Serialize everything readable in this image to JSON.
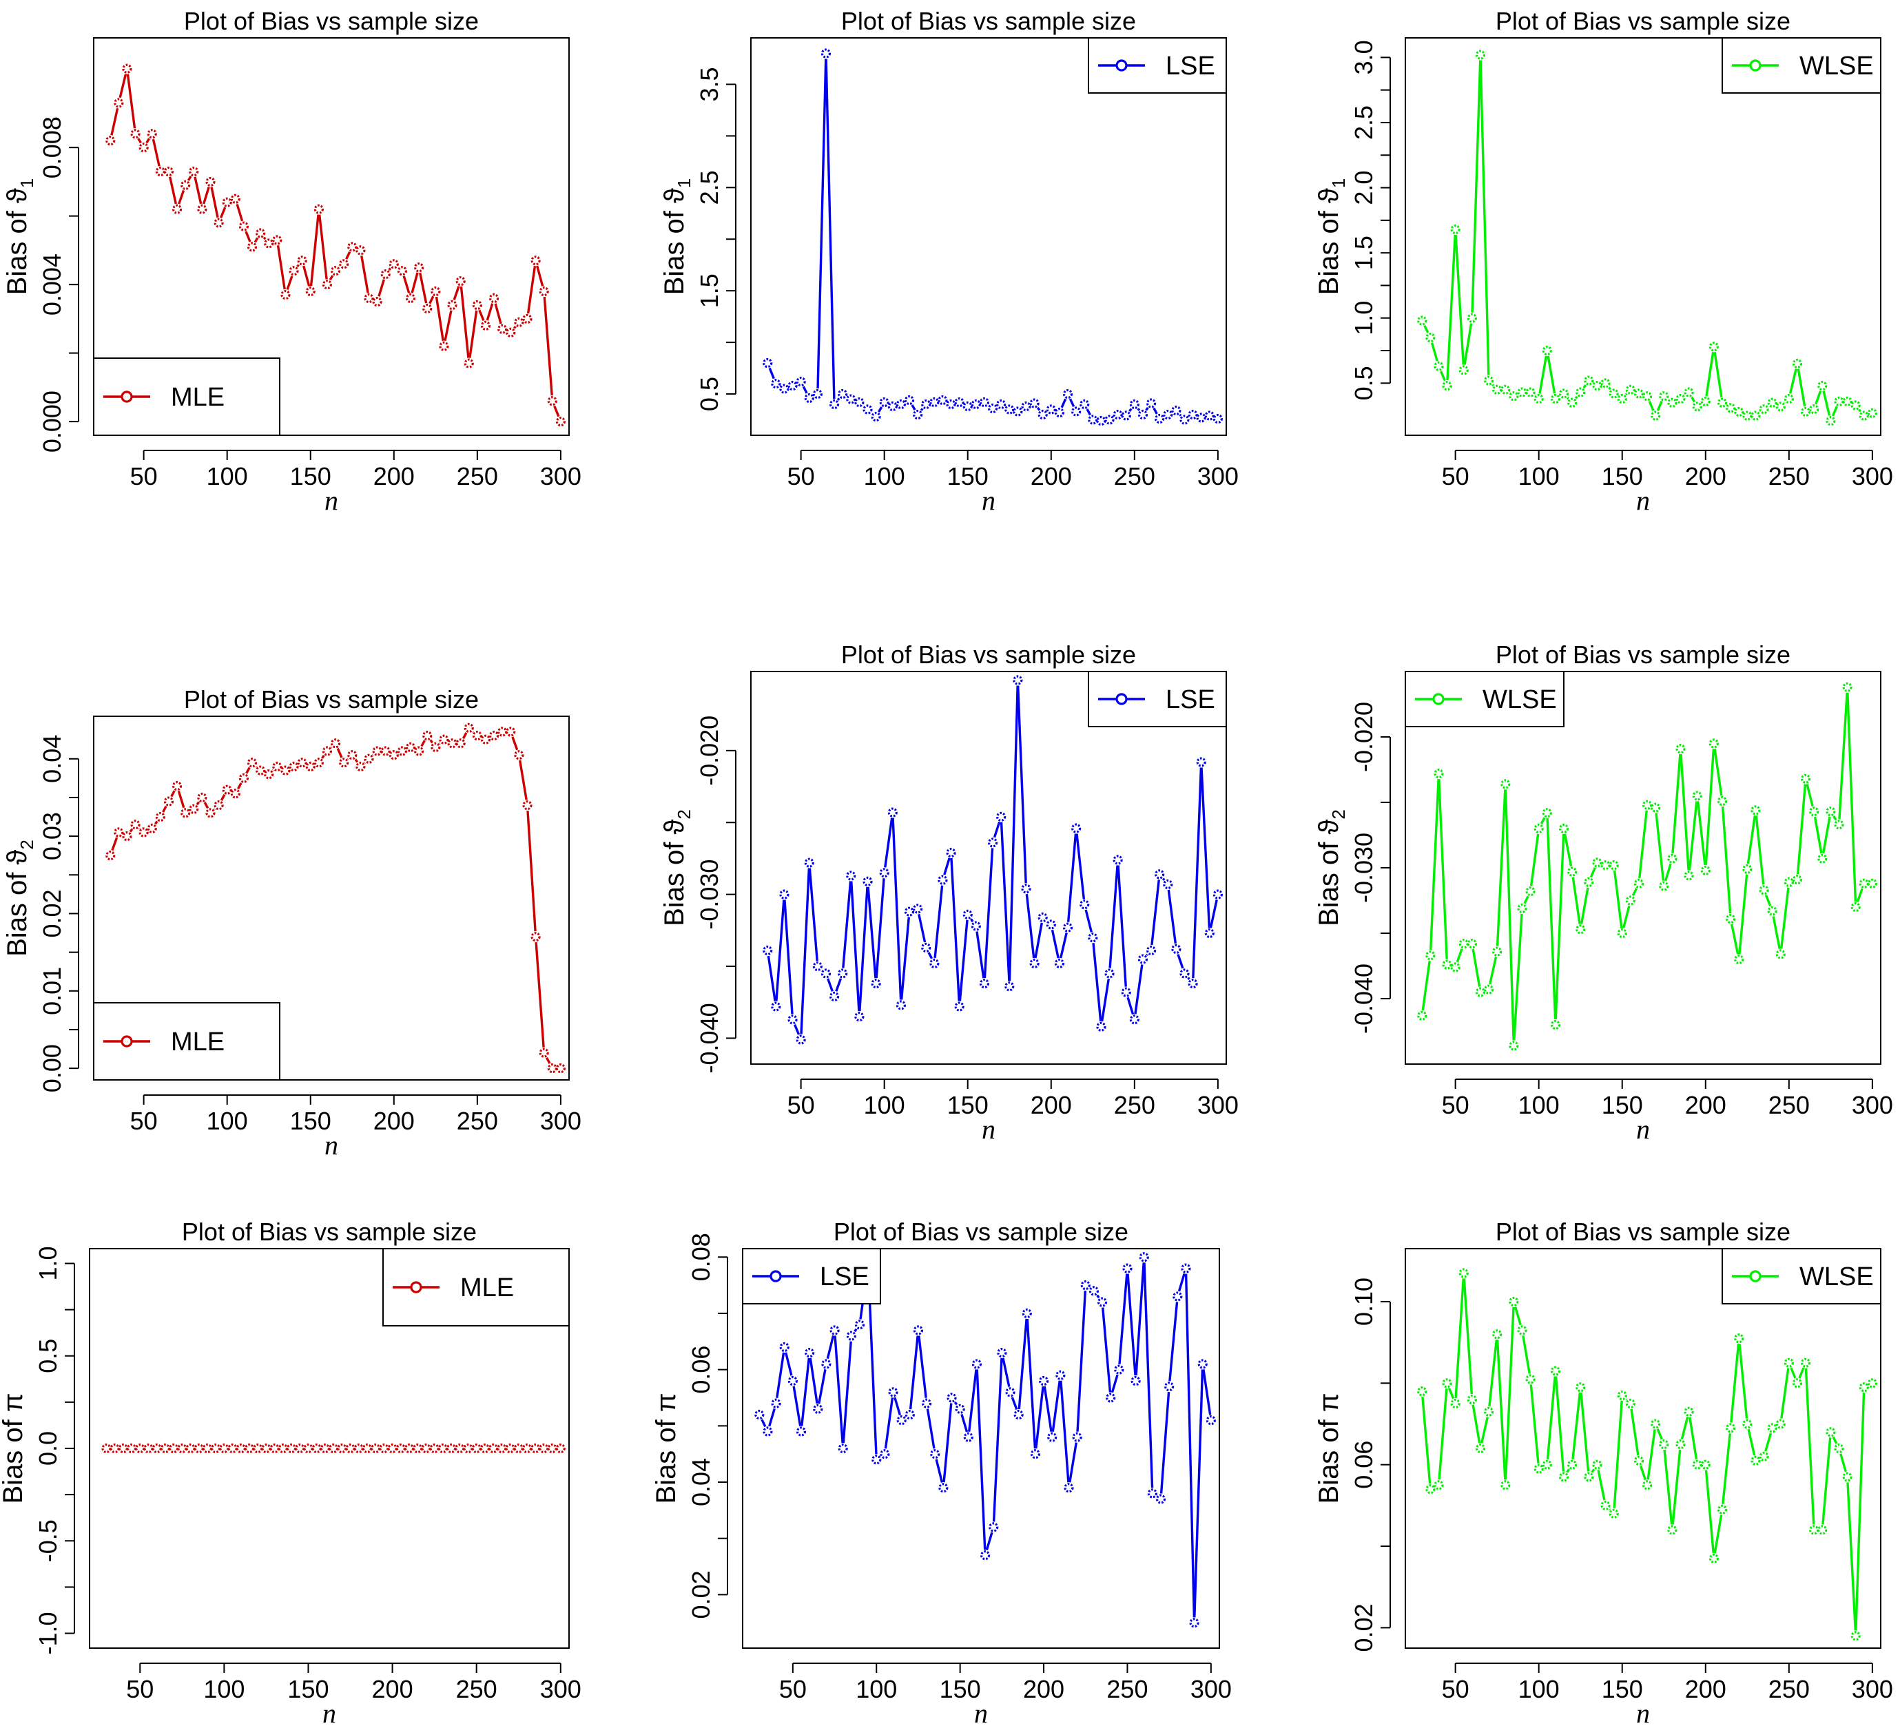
{
  "chart_data": [
    {
      "id": "p11",
      "type": "line",
      "title": "Plot of Bias vs sample size",
      "xlabel": "n",
      "ylabel": "Bias of ϑ",
      "ylabel_sub": "1",
      "color": "#cc0000",
      "legend": "MLE",
      "legend_pos": "bottom-left",
      "xlim": [
        20,
        305
      ],
      "ylim": [
        -0.0004,
        0.0112
      ],
      "xticks": [
        "50",
        "100",
        "150",
        "200",
        "250",
        "300"
      ],
      "yticks": [
        "0.000",
        "0.004",
        "0.008"
      ],
      "x": [
        30,
        35,
        40,
        45,
        50,
        55,
        60,
        65,
        70,
        75,
        80,
        85,
        90,
        95,
        100,
        105,
        110,
        115,
        120,
        125,
        130,
        135,
        140,
        145,
        150,
        155,
        160,
        165,
        170,
        175,
        180,
        185,
        190,
        195,
        200,
        205,
        210,
        215,
        220,
        225,
        230,
        235,
        240,
        245,
        250,
        255,
        260,
        265,
        270,
        275,
        280,
        285,
        290,
        295,
        300
      ],
      "values": [
        0.0082,
        0.0093,
        0.0103,
        0.0084,
        0.008,
        0.0084,
        0.0073,
        0.0073,
        0.0062,
        0.0069,
        0.0073,
        0.0062,
        0.007,
        0.0058,
        0.0064,
        0.0065,
        0.0057,
        0.0051,
        0.0055,
        0.0052,
        0.0053,
        0.0037,
        0.0044,
        0.0047,
        0.0038,
        0.0062,
        0.004,
        0.0044,
        0.0046,
        0.0051,
        0.005,
        0.0036,
        0.0035,
        0.0043,
        0.0046,
        0.0044,
        0.0036,
        0.0045,
        0.0033,
        0.0038,
        0.0022,
        0.0034,
        0.0041,
        0.0017,
        0.0034,
        0.0028,
        0.0036,
        0.0027,
        0.0026,
        0.0029,
        0.003,
        0.0047,
        0.0038,
        0.0006,
        0.0
      ]
    },
    {
      "id": "p12",
      "type": "line",
      "title": "Plot of Bias vs sample size",
      "xlabel": "n",
      "ylabel": "Bias of ϑ",
      "ylabel_sub": "1",
      "color": "#0000ee",
      "legend": "LSE",
      "legend_pos": "top-right",
      "xlim": [
        20,
        305
      ],
      "ylim": [
        0.1,
        3.95
      ],
      "xticks": [
        "50",
        "100",
        "150",
        "200",
        "250",
        "300"
      ],
      "yticks": [
        "0.5",
        "1.5",
        "2.5",
        "3.5"
      ],
      "x": [
        30,
        35,
        40,
        45,
        50,
        55,
        60,
        65,
        70,
        75,
        80,
        85,
        90,
        95,
        100,
        105,
        110,
        115,
        120,
        125,
        130,
        135,
        140,
        145,
        150,
        155,
        160,
        165,
        170,
        175,
        180,
        185,
        190,
        195,
        200,
        205,
        210,
        215,
        220,
        225,
        230,
        235,
        240,
        245,
        250,
        255,
        260,
        265,
        270,
        275,
        280,
        285,
        290,
        295,
        300
      ],
      "values": [
        0.8,
        0.6,
        0.55,
        0.58,
        0.62,
        0.46,
        0.5,
        3.8,
        0.4,
        0.5,
        0.45,
        0.42,
        0.35,
        0.28,
        0.42,
        0.38,
        0.4,
        0.44,
        0.3,
        0.4,
        0.42,
        0.44,
        0.4,
        0.42,
        0.38,
        0.4,
        0.42,
        0.36,
        0.4,
        0.35,
        0.33,
        0.38,
        0.41,
        0.3,
        0.35,
        0.32,
        0.5,
        0.33,
        0.4,
        0.25,
        0.24,
        0.25,
        0.3,
        0.29,
        0.4,
        0.3,
        0.41,
        0.26,
        0.3,
        0.34,
        0.25,
        0.3,
        0.27,
        0.29,
        0.26
      ]
    },
    {
      "id": "p13",
      "type": "line",
      "title": "Plot of Bias vs sample size",
      "xlabel": "n",
      "ylabel": "Bias of ϑ",
      "ylabel_sub": "1",
      "color": "#00ee00",
      "legend": "WLSE",
      "legend_pos": "top-right",
      "xlim": [
        20,
        305
      ],
      "ylim": [
        0.1,
        3.15
      ],
      "xticks": [
        "50",
        "100",
        "150",
        "200",
        "250",
        "300"
      ],
      "yticks": [
        "0.5",
        "1.0",
        "1.5",
        "2.0",
        "2.5",
        "3.0"
      ],
      "x": [
        30,
        35,
        40,
        45,
        50,
        55,
        60,
        65,
        70,
        75,
        80,
        85,
        90,
        95,
        100,
        105,
        110,
        115,
        120,
        125,
        130,
        135,
        140,
        145,
        150,
        155,
        160,
        165,
        170,
        175,
        180,
        185,
        190,
        195,
        200,
        205,
        210,
        215,
        220,
        225,
        230,
        235,
        240,
        245,
        250,
        255,
        260,
        265,
        270,
        275,
        280,
        285,
        290,
        295,
        300
      ],
      "values": [
        0.98,
        0.85,
        0.63,
        0.48,
        1.68,
        0.6,
        1.0,
        3.02,
        0.52,
        0.45,
        0.45,
        0.4,
        0.43,
        0.43,
        0.38,
        0.75,
        0.38,
        0.42,
        0.35,
        0.43,
        0.52,
        0.48,
        0.5,
        0.42,
        0.38,
        0.45,
        0.42,
        0.4,
        0.25,
        0.4,
        0.35,
        0.38,
        0.43,
        0.32,
        0.36,
        0.78,
        0.35,
        0.31,
        0.28,
        0.25,
        0.25,
        0.3,
        0.35,
        0.32,
        0.38,
        0.65,
        0.28,
        0.3,
        0.48,
        0.21,
        0.36,
        0.36,
        0.33,
        0.25,
        0.27
      ]
    },
    {
      "id": "p21",
      "type": "line",
      "title": "Plot of Bias vs sample size",
      "xlabel": "n",
      "ylabel": "Bias of ϑ",
      "ylabel_sub": "2",
      "color": "#cc0000",
      "legend": "MLE",
      "legend_pos": "bottom-left",
      "xlim": [
        20,
        305
      ],
      "ylim": [
        -0.0015,
        0.0455
      ],
      "xticks": [
        "50",
        "100",
        "150",
        "200",
        "250",
        "300"
      ],
      "yticks": [
        "0.00",
        "0.01",
        "0.02",
        "0.03",
        "0.04"
      ],
      "x": [
        30,
        35,
        40,
        45,
        50,
        55,
        60,
        65,
        70,
        75,
        80,
        85,
        90,
        95,
        100,
        105,
        110,
        115,
        120,
        125,
        130,
        135,
        140,
        145,
        150,
        155,
        160,
        165,
        170,
        175,
        180,
        185,
        190,
        195,
        200,
        205,
        210,
        215,
        220,
        225,
        230,
        235,
        240,
        245,
        250,
        255,
        260,
        265,
        270,
        275,
        280,
        285,
        290,
        295,
        300
      ],
      "values": [
        0.0275,
        0.0305,
        0.03,
        0.0315,
        0.0305,
        0.031,
        0.0325,
        0.0345,
        0.0365,
        0.033,
        0.0335,
        0.035,
        0.033,
        0.034,
        0.036,
        0.0355,
        0.0375,
        0.0395,
        0.0385,
        0.038,
        0.039,
        0.0385,
        0.039,
        0.0395,
        0.039,
        0.0395,
        0.041,
        0.042,
        0.0395,
        0.0405,
        0.039,
        0.04,
        0.041,
        0.041,
        0.0405,
        0.041,
        0.0415,
        0.041,
        0.043,
        0.0415,
        0.0425,
        0.042,
        0.042,
        0.044,
        0.043,
        0.0425,
        0.043,
        0.0435,
        0.0435,
        0.0405,
        0.034,
        0.017,
        0.002,
        0.0,
        0.0
      ]
    },
    {
      "id": "p22",
      "type": "line",
      "title": "Plot of Bias vs sample size",
      "xlabel": "n",
      "ylabel": "Bias of ϑ",
      "ylabel_sub": "2",
      "color": "#0000ee",
      "legend": "LSE",
      "legend_pos": "top-right",
      "xlim": [
        20,
        305
      ],
      "ylim": [
        -0.0418,
        -0.0145
      ],
      "xticks": [
        "50",
        "100",
        "150",
        "200",
        "250",
        "300"
      ],
      "yticks": [
        "-0.040",
        "-0.030",
        "-0.020"
      ],
      "x": [
        30,
        35,
        40,
        45,
        50,
        55,
        60,
        65,
        70,
        75,
        80,
        85,
        90,
        95,
        100,
        105,
        110,
        115,
        120,
        125,
        130,
        135,
        140,
        145,
        150,
        155,
        160,
        165,
        170,
        175,
        180,
        185,
        190,
        195,
        200,
        205,
        210,
        215,
        220,
        225,
        230,
        235,
        240,
        245,
        250,
        255,
        260,
        265,
        270,
        275,
        280,
        285,
        290,
        295,
        300
      ],
      "values": [
        -0.0339,
        -0.0378,
        -0.03,
        -0.0387,
        -0.0401,
        -0.0278,
        -0.035,
        -0.0355,
        -0.0371,
        -0.0355,
        -0.0287,
        -0.0385,
        -0.0291,
        -0.0362,
        -0.0285,
        -0.0243,
        -0.0377,
        -0.0312,
        -0.031,
        -0.0337,
        -0.0348,
        -0.029,
        -0.0271,
        -0.0378,
        -0.0314,
        -0.0322,
        -0.0362,
        -0.0264,
        -0.0246,
        -0.0364,
        -0.0151,
        -0.0296,
        -0.0348,
        -0.0316,
        -0.0321,
        -0.0348,
        -0.0323,
        -0.0254,
        -0.0307,
        -0.033,
        -0.0392,
        -0.0355,
        -0.0276,
        -0.0368,
        -0.0387,
        -0.0345,
        -0.0339,
        -0.0286,
        -0.0293,
        -0.0338,
        -0.0355,
        -0.0362,
        -0.0208,
        -0.0327,
        -0.03
      ]
    },
    {
      "id": "p23",
      "type": "line",
      "title": "Plot of Bias vs sample size",
      "xlabel": "n",
      "ylabel": "Bias of ϑ",
      "ylabel_sub": "2",
      "color": "#00ee00",
      "legend": "WLSE",
      "legend_pos": "top-left",
      "xlim": [
        20,
        305
      ],
      "ylim": [
        -0.045,
        -0.015
      ],
      "xticks": [
        "50",
        "100",
        "150",
        "200",
        "250",
        "300"
      ],
      "yticks": [
        "-0.040",
        "-0.030",
        "-0.020"
      ],
      "x": [
        30,
        35,
        40,
        45,
        50,
        55,
        60,
        65,
        70,
        75,
        80,
        85,
        90,
        95,
        100,
        105,
        110,
        115,
        120,
        125,
        130,
        135,
        140,
        145,
        150,
        155,
        160,
        165,
        170,
        175,
        180,
        185,
        190,
        195,
        200,
        205,
        210,
        215,
        220,
        225,
        230,
        235,
        240,
        245,
        250,
        255,
        260,
        265,
        270,
        275,
        280,
        285,
        290,
        295,
        300
      ],
      "values": [
        -0.0413,
        -0.0367,
        -0.0228,
        -0.0374,
        -0.0376,
        -0.0358,
        -0.0358,
        -0.0395,
        -0.0393,
        -0.0364,
        -0.0236,
        -0.0436,
        -0.0331,
        -0.0318,
        -0.027,
        -0.0258,
        -0.042,
        -0.027,
        -0.0303,
        -0.0347,
        -0.0311,
        -0.0296,
        -0.0298,
        -0.0298,
        -0.035,
        -0.0325,
        -0.0312,
        -0.0252,
        -0.0254,
        -0.0314,
        -0.0293,
        -0.0209,
        -0.0306,
        -0.0245,
        -0.0302,
        -0.0205,
        -0.0249,
        -0.0339,
        -0.037,
        -0.0301,
        -0.0256,
        -0.0317,
        -0.0333,
        -0.0366,
        -0.0311,
        -0.0309,
        -0.0232,
        -0.0257,
        -0.0293,
        -0.0257,
        -0.0267,
        -0.0162,
        -0.033,
        -0.0312,
        -0.0312
      ]
    },
    {
      "id": "p31",
      "type": "line",
      "title": "Plot of Bias vs sample size",
      "xlabel": "n",
      "ylabel": "Bias of π",
      "ylabel_sub": "",
      "color": "#cc0000",
      "legend": "MLE",
      "legend_pos": "top-right",
      "xlim": [
        20,
        305
      ],
      "ylim": [
        -1.08,
        1.08
      ],
      "xticks": [
        "50",
        "100",
        "150",
        "200",
        "250",
        "300"
      ],
      "yticks": [
        "-1.0",
        "-0.5",
        "0.0",
        "0.5",
        "1.0"
      ],
      "x": [
        30,
        35,
        40,
        45,
        50,
        55,
        60,
        65,
        70,
        75,
        80,
        85,
        90,
        95,
        100,
        105,
        110,
        115,
        120,
        125,
        130,
        135,
        140,
        145,
        150,
        155,
        160,
        165,
        170,
        175,
        180,
        185,
        190,
        195,
        200,
        205,
        210,
        215,
        220,
        225,
        230,
        235,
        240,
        245,
        250,
        255,
        260,
        265,
        270,
        275,
        280,
        285,
        290,
        295,
        300
      ],
      "values": [
        0,
        0,
        0,
        0,
        0,
        0,
        0,
        0,
        0,
        0,
        0,
        0,
        0,
        0,
        0,
        0,
        0,
        0,
        0,
        0,
        0,
        0,
        0,
        0,
        0,
        0,
        0,
        0,
        0,
        0,
        0,
        0,
        0,
        0,
        0,
        0,
        0,
        0,
        0,
        0,
        0,
        0,
        0,
        0,
        0,
        0,
        0,
        0,
        0,
        0,
        0,
        0,
        0,
        0,
        0
      ]
    },
    {
      "id": "p32",
      "type": "line",
      "title": "Plot of Bias vs sample size",
      "xlabel": "n",
      "ylabel": "Bias of π",
      "ylabel_sub": "",
      "color": "#0000ee",
      "legend": "LSE",
      "legend_pos": "top-left",
      "xlim": [
        20,
        305
      ],
      "ylim": [
        0.0105,
        0.0815
      ],
      "xticks": [
        "50",
        "100",
        "150",
        "200",
        "250",
        "300"
      ],
      "yticks": [
        "0.02",
        "0.04",
        "0.06",
        "0.08"
      ],
      "x": [
        30,
        35,
        40,
        45,
        50,
        55,
        60,
        65,
        70,
        75,
        80,
        85,
        90,
        95,
        100,
        105,
        110,
        115,
        120,
        125,
        130,
        135,
        140,
        145,
        150,
        155,
        160,
        165,
        170,
        175,
        180,
        185,
        190,
        195,
        200,
        205,
        210,
        215,
        220,
        225,
        230,
        235,
        240,
        245,
        250,
        255,
        260,
        265,
        270,
        275,
        280,
        285,
        290,
        295,
        300
      ],
      "values": [
        0.052,
        0.049,
        0.054,
        0.064,
        0.058,
        0.049,
        0.063,
        0.053,
        0.061,
        0.067,
        0.046,
        0.066,
        0.068,
        0.079,
        0.044,
        0.045,
        0.056,
        0.051,
        0.052,
        0.067,
        0.054,
        0.045,
        0.039,
        0.055,
        0.053,
        0.048,
        0.061,
        0.027,
        0.032,
        0.063,
        0.056,
        0.052,
        0.07,
        0.045,
        0.058,
        0.048,
        0.059,
        0.039,
        0.048,
        0.075,
        0.074,
        0.072,
        0.055,
        0.06,
        0.078,
        0.058,
        0.08,
        0.038,
        0.037,
        0.057,
        0.073,
        0.078,
        0.015,
        0.061,
        0.051
      ]
    },
    {
      "id": "p33",
      "type": "line",
      "title": "Plot of Bias vs sample size",
      "xlabel": "n",
      "ylabel": "Bias of π",
      "ylabel_sub": "",
      "color": "#00ee00",
      "legend": "WLSE",
      "legend_pos": "top-right",
      "xlim": [
        20,
        305
      ],
      "ylim": [
        0.015,
        0.113
      ],
      "xticks": [
        "50",
        "100",
        "150",
        "200",
        "250",
        "300"
      ],
      "yticks": [
        "0.02",
        "0.06",
        "0.10"
      ],
      "x": [
        30,
        35,
        40,
        45,
        50,
        55,
        60,
        65,
        70,
        75,
        80,
        85,
        90,
        95,
        100,
        105,
        110,
        115,
        120,
        125,
        130,
        135,
        140,
        145,
        150,
        155,
        160,
        165,
        170,
        175,
        180,
        185,
        190,
        195,
        200,
        205,
        210,
        215,
        220,
        225,
        230,
        235,
        240,
        245,
        250,
        255,
        260,
        265,
        270,
        275,
        280,
        285,
        290,
        295,
        300
      ],
      "values": [
        0.078,
        0.054,
        0.055,
        0.08,
        0.075,
        0.107,
        0.076,
        0.064,
        0.073,
        0.092,
        0.055,
        0.1,
        0.093,
        0.081,
        0.059,
        0.06,
        0.083,
        0.057,
        0.06,
        0.079,
        0.057,
        0.06,
        0.05,
        0.048,
        0.077,
        0.075,
        0.061,
        0.055,
        0.07,
        0.065,
        0.044,
        0.065,
        0.073,
        0.06,
        0.06,
        0.037,
        0.049,
        0.069,
        0.091,
        0.07,
        0.061,
        0.062,
        0.069,
        0.07,
        0.085,
        0.08,
        0.085,
        0.044,
        0.044,
        0.068,
        0.064,
        0.057,
        0.018,
        0.079,
        0.08
      ]
    }
  ]
}
